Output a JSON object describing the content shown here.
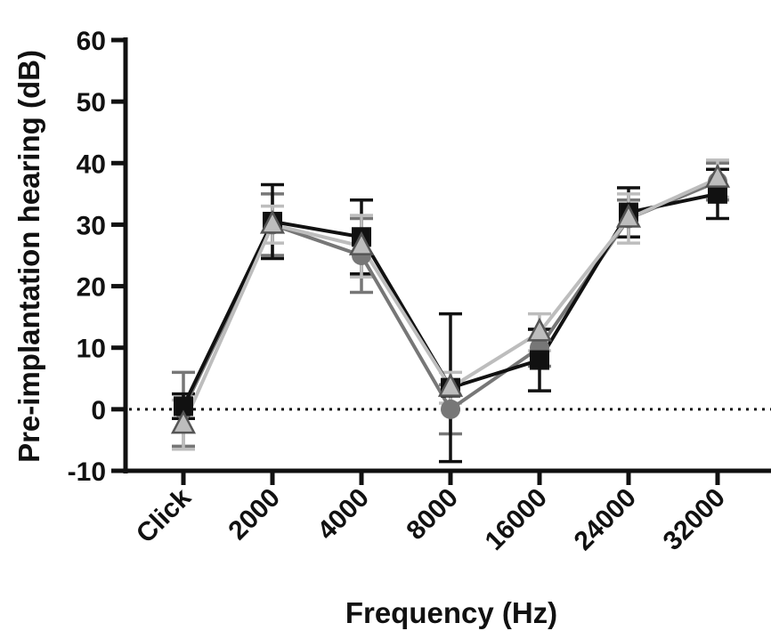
{
  "chart_data": {
    "type": "line",
    "title": "",
    "xlabel": "Frequency (Hz)",
    "ylabel": "Pre-implantation hearing (dB)",
    "categories": [
      "Click",
      "2000",
      "4000",
      "8000",
      "16000",
      "24000",
      "32000"
    ],
    "yticks": [
      "-10",
      "0",
      "10",
      "20",
      "30",
      "40",
      "50",
      "60"
    ],
    "ylim": [
      -10,
      60
    ],
    "reference_line": {
      "y": 0,
      "style": "dotted"
    },
    "grid": false,
    "legend": "none",
    "series": [
      {
        "marker": "circle",
        "color": "#777777",
        "values": [
          0,
          30,
          25,
          0,
          10,
          31,
          37
        ],
        "error": [
          6,
          5,
          6,
          4,
          3,
          3,
          3
        ]
      },
      {
        "marker": "square",
        "color": "#111111",
        "values": [
          0.5,
          30.5,
          28,
          3.5,
          8,
          32,
          35
        ],
        "error": [
          2,
          6,
          6,
          12,
          5,
          4,
          4
        ]
      },
      {
        "marker": "triangle",
        "color": "#bdbdbd",
        "values": [
          -2.5,
          30,
          26.5,
          3.5,
          12.5,
          31,
          37.5
        ],
        "error": [
          4,
          3,
          5,
          2.5,
          3,
          4,
          3
        ]
      }
    ]
  }
}
